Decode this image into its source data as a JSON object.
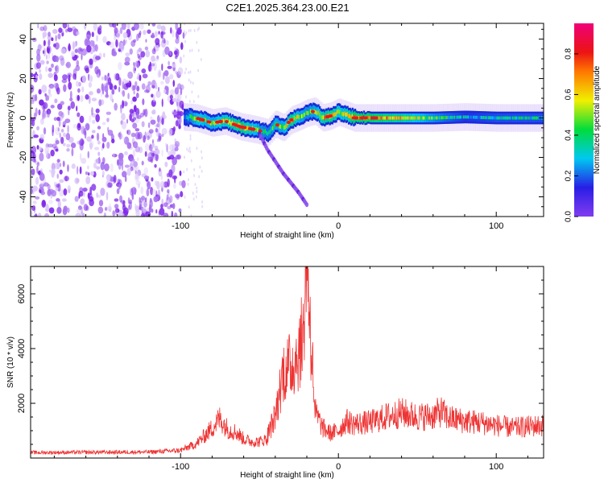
{
  "figure": {
    "title": "C2E1.2025.364.23.00.E21"
  },
  "chart_data": [
    {
      "type": "heatmap",
      "xlabel": "Height of straight line (km)",
      "ylabel": "Frequency (Hz)",
      "xlim": [
        -195,
        130
      ],
      "ylim": [
        -50,
        48
      ],
      "xticks": [
        -100,
        0,
        100
      ],
      "yticks": [
        -40,
        -20,
        0,
        20,
        40
      ],
      "colorbar": {
        "label": "Normalized spectral amplitude",
        "ticks": [
          0.0,
          0.2,
          0.4,
          0.6,
          0.8
        ],
        "range": [
          0,
          0.95
        ],
        "colormap": "rainbow (purple → blue → cyan → green → yellow → orange → red → magenta)"
      },
      "noise_region_x": [
        -195,
        -98
      ],
      "ridge": {
        "x": [
          -98,
          -90,
          -80,
          -72,
          -62,
          -52,
          -45,
          -40,
          -35,
          -30,
          -25,
          -20,
          -15,
          -10,
          -5,
          0,
          5,
          10,
          20,
          40,
          60,
          80,
          100,
          130
        ],
        "y": [
          0.5,
          0.0,
          -2.5,
          -1.5,
          -4.5,
          -6.0,
          -7.5,
          -3.0,
          -5.0,
          -1.0,
          0.5,
          2.5,
          3.5,
          0.0,
          1.0,
          3.0,
          1.5,
          0.0,
          0.0,
          0.0,
          0.0,
          0.5,
          0.0,
          0.0
        ],
        "amplitude": [
          0.3,
          0.55,
          0.5,
          0.6,
          0.7,
          0.5,
          0.4,
          0.5,
          0.5,
          0.7,
          0.5,
          0.45,
          0.5,
          0.65,
          0.7,
          0.55,
          0.6,
          0.75,
          0.75,
          0.65,
          0.45,
          0.3,
          0.35,
          0.35
        ]
      },
      "branch": {
        "x": [
          -50,
          -45,
          -40,
          -35,
          -30,
          -25,
          -20
        ],
        "y": [
          -8,
          -16,
          -22,
          -28,
          -33,
          -38,
          -44
        ]
      }
    },
    {
      "type": "line",
      "xlabel": "Height of straight line (km)",
      "ylabel": "SNR (10 * v/v)",
      "xlim": [
        -195,
        130
      ],
      "ylim": [
        0,
        7000
      ],
      "xticks": [
        -100,
        0,
        100
      ],
      "yticks": [
        2000,
        4000,
        6000
      ],
      "color": "#ee3333",
      "envelope": {
        "x": [
          -195,
          -120,
          -100,
          -90,
          -85,
          -80,
          -75,
          -70,
          -65,
          -60,
          -55,
          -50,
          -45,
          -40,
          -35,
          -30,
          -25,
          -22,
          -20,
          -18,
          -15,
          -10,
          -5,
          0,
          5,
          10,
          20,
          30,
          40,
          50,
          60,
          65,
          70,
          80,
          90,
          100,
          110,
          120,
          130
        ],
        "y": [
          200,
          220,
          280,
          520,
          800,
          1100,
          1450,
          1050,
          950,
          700,
          600,
          600,
          700,
          1300,
          2700,
          2850,
          3300,
          3900,
          6900,
          4200,
          1700,
          1100,
          900,
          1000,
          1350,
          1250,
          1300,
          1500,
          1650,
          1500,
          1550,
          1700,
          1450,
          1350,
          1300,
          1200,
          1100,
          1150,
          1200
        ]
      },
      "noise_amplitude": 0.35
    }
  ]
}
